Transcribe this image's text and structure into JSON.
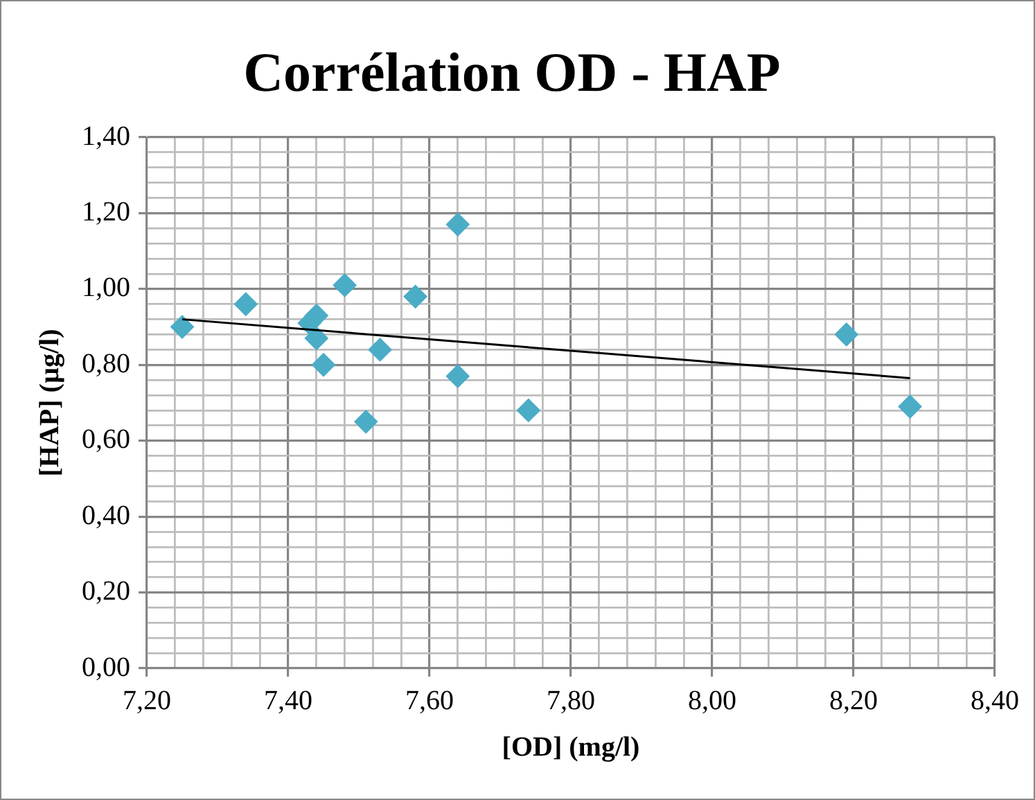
{
  "chart_data": {
    "type": "scatter",
    "title": "Corrélation OD - HAP",
    "xlabel": "[OD] (mg/l)",
    "ylabel": "[HAP] (µg/l)",
    "series": [
      {
        "color": "#4bacc6",
        "marker": "diamond",
        "x": [
          7.25,
          7.34,
          7.48,
          7.43,
          7.44,
          7.44,
          7.45,
          7.51,
          7.53,
          7.58,
          7.64,
          7.64,
          7.74,
          8.19,
          8.28
        ],
        "values": [
          0.9,
          0.96,
          1.01,
          0.91,
          0.93,
          0.87,
          0.8,
          0.65,
          0.84,
          0.98,
          1.17,
          0.77,
          0.68,
          0.88,
          0.69
        ]
      },
      {
        "type": "line",
        "color": "#000000",
        "marker": "none",
        "x": [
          7.25,
          8.28
        ],
        "values": [
          0.92,
          0.765
        ]
      }
    ],
    "xlim": [
      7.2,
      8.4
    ],
    "ylim": [
      0,
      1.4
    ],
    "xticks": [
      {
        "value": 7.2,
        "label": "7,20"
      },
      {
        "value": 7.24,
        "label": null
      },
      {
        "value": 7.28,
        "label": null
      },
      {
        "value": 7.32,
        "label": null
      },
      {
        "value": 7.36,
        "label": null
      },
      {
        "value": 7.4,
        "label": "7,40"
      },
      {
        "value": 7.44,
        "label": null
      },
      {
        "value": 7.48,
        "label": null
      },
      {
        "value": 7.52,
        "label": null
      },
      {
        "value": 7.56,
        "label": null
      },
      {
        "value": 7.6,
        "label": "7,60"
      },
      {
        "value": 7.64,
        "label": null
      },
      {
        "value": 7.68,
        "label": null
      },
      {
        "value": 7.72,
        "label": null
      },
      {
        "value": 7.76,
        "label": null
      },
      {
        "value": 7.8,
        "label": "7,80"
      },
      {
        "value": 7.84,
        "label": null
      },
      {
        "value": 7.88,
        "label": null
      },
      {
        "value": 7.92,
        "label": null
      },
      {
        "value": 7.96,
        "label": null
      },
      {
        "value": 8.0,
        "label": "8,00"
      },
      {
        "value": 8.04,
        "label": null
      },
      {
        "value": 8.08,
        "label": null
      },
      {
        "value": 8.12,
        "label": null
      },
      {
        "value": 8.16,
        "label": null
      },
      {
        "value": 8.2,
        "label": "8,20"
      },
      {
        "value": 8.24,
        "label": null
      },
      {
        "value": 8.28,
        "label": null
      },
      {
        "value": 8.32,
        "label": null
      },
      {
        "value": 8.36,
        "label": null
      },
      {
        "value": 8.4,
        "label": "8,40"
      }
    ],
    "yticks": [
      {
        "value": 0,
        "label": "0,00"
      },
      {
        "value": 0.04,
        "label": null
      },
      {
        "value": 0.08,
        "label": null
      },
      {
        "value": 0.12,
        "label": null
      },
      {
        "value": 0.16,
        "label": null
      },
      {
        "value": 0.2,
        "label": "0,20"
      },
      {
        "value": 0.24,
        "label": null
      },
      {
        "value": 0.28,
        "label": null
      },
      {
        "value": 0.32,
        "label": null
      },
      {
        "value": 0.36,
        "label": null
      },
      {
        "value": 0.4,
        "label": "0,40"
      },
      {
        "value": 0.44,
        "label": null
      },
      {
        "value": 0.48,
        "label": null
      },
      {
        "value": 0.52,
        "label": null
      },
      {
        "value": 0.56,
        "label": null
      },
      {
        "value": 0.6,
        "label": "0,60"
      },
      {
        "value": 0.64,
        "label": null
      },
      {
        "value": 0.68,
        "label": null
      },
      {
        "value": 0.72,
        "label": null
      },
      {
        "value": 0.76,
        "label": null
      },
      {
        "value": 0.8,
        "label": "0,80"
      },
      {
        "value": 0.84,
        "label": null
      },
      {
        "value": 0.88,
        "label": null
      },
      {
        "value": 0.92,
        "label": null
      },
      {
        "value": 0.96,
        "label": null
      },
      {
        "value": 1.0,
        "label": "1,00"
      },
      {
        "value": 1.04,
        "label": null
      },
      {
        "value": 1.08,
        "label": null
      },
      {
        "value": 1.12,
        "label": null
      },
      {
        "value": 1.16,
        "label": null
      },
      {
        "value": 1.2,
        "label": "1,20"
      },
      {
        "value": 1.24,
        "label": null
      },
      {
        "value": 1.28,
        "label": null
      },
      {
        "value": 1.32,
        "label": null
      },
      {
        "value": 1.36,
        "label": null
      },
      {
        "value": 1.4,
        "label": "1,40"
      }
    ],
    "grid": true,
    "legend": false
  }
}
